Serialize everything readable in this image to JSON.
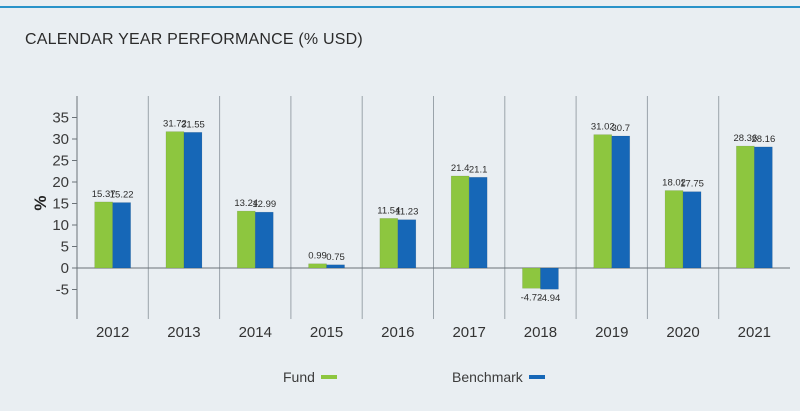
{
  "title": "CALENDAR YEAR PERFORMANCE (% USD)",
  "chart_data": {
    "type": "bar",
    "title": "CALENDAR YEAR PERFORMANCE (% USD)",
    "xlabel": "",
    "ylabel": "%",
    "ylim": [
      -10,
      40
    ],
    "yticks": [
      35,
      30,
      25,
      20,
      15,
      10,
      5,
      0,
      -5
    ],
    "ytick_labels": [
      "35",
      "30",
      "25",
      "20",
      "15",
      "10",
      "5",
      "0",
      "-5"
    ],
    "categories": [
      "2012",
      "2013",
      "2014",
      "2015",
      "2016",
      "2017",
      "2018",
      "2019",
      "2020",
      "2021"
    ],
    "series": [
      {
        "name": "Fund",
        "color": "#8dc63f",
        "values": [
          15.37,
          31.72,
          13.24,
          0.99,
          11.54,
          21.4,
          -4.72,
          31.02,
          18.02,
          28.36
        ],
        "labels": [
          "15.37",
          "31.72",
          "13.24",
          "0.99",
          "11.54",
          "21.4",
          "-4.72",
          "31.02",
          "18.02",
          "28.36"
        ]
      },
      {
        "name": "Benchmark",
        "color": "#1667b7",
        "values": [
          15.22,
          31.55,
          12.99,
          0.75,
          11.23,
          21.1,
          -4.94,
          30.7,
          17.75,
          28.16
        ],
        "labels": [
          "15.22",
          "31.55",
          "12.99",
          "0.75",
          "11.23",
          "21.1",
          "-4.94",
          "30.7",
          "17.75",
          "28.16"
        ]
      }
    ],
    "grid": "vertical-separators",
    "legend_position": "bottom"
  },
  "legend": {
    "fund": "Fund",
    "benchmark": "Benchmark"
  }
}
